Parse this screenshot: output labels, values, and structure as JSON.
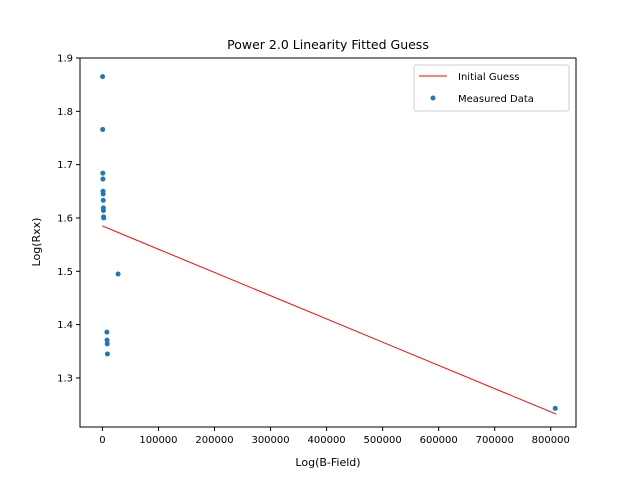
{
  "chart_data": {
    "type": "scatter",
    "title": "Power 2.0 Linearity Fitted Guess",
    "xlabel": "Log(B-Field)",
    "ylabel": "Log(Rxx)",
    "xlim": [
      -40000,
      845000
    ],
    "ylim": [
      1.208,
      1.9
    ],
    "xticks": [
      0,
      100000,
      200000,
      300000,
      400000,
      500000,
      600000,
      700000,
      800000
    ],
    "xtick_labels": [
      "0",
      "100000",
      "200000",
      "300000",
      "400000",
      "500000",
      "600000",
      "700000",
      "800000"
    ],
    "yticks": [
      1.3,
      1.4,
      1.5,
      1.6,
      1.7,
      1.8,
      1.9
    ],
    "ytick_labels": [
      "1.3",
      "1.4",
      "1.5",
      "1.6",
      "1.7",
      "1.8",
      "1.9"
    ],
    "grid": false,
    "legend_position": "top-right",
    "series": [
      {
        "name": "Initial Guess",
        "kind": "line",
        "color": "#ff0000",
        "x": [
          0,
          810000
        ],
        "y": [
          1.585,
          1.232
        ]
      },
      {
        "name": "Measured Data",
        "kind": "scatter",
        "color": "#1f77b4",
        "x": [
          300,
          500,
          700,
          900,
          1100,
          1300,
          1500,
          1700,
          1900,
          2100,
          2400,
          28000,
          8000,
          8300,
          8600,
          8900,
          808000
        ],
        "y": [
          1.865,
          1.766,
          1.684,
          1.673,
          1.65,
          1.645,
          1.633,
          1.619,
          1.614,
          1.602,
          1.6,
          1.495,
          1.386,
          1.371,
          1.364,
          1.345,
          1.243
        ]
      }
    ]
  }
}
